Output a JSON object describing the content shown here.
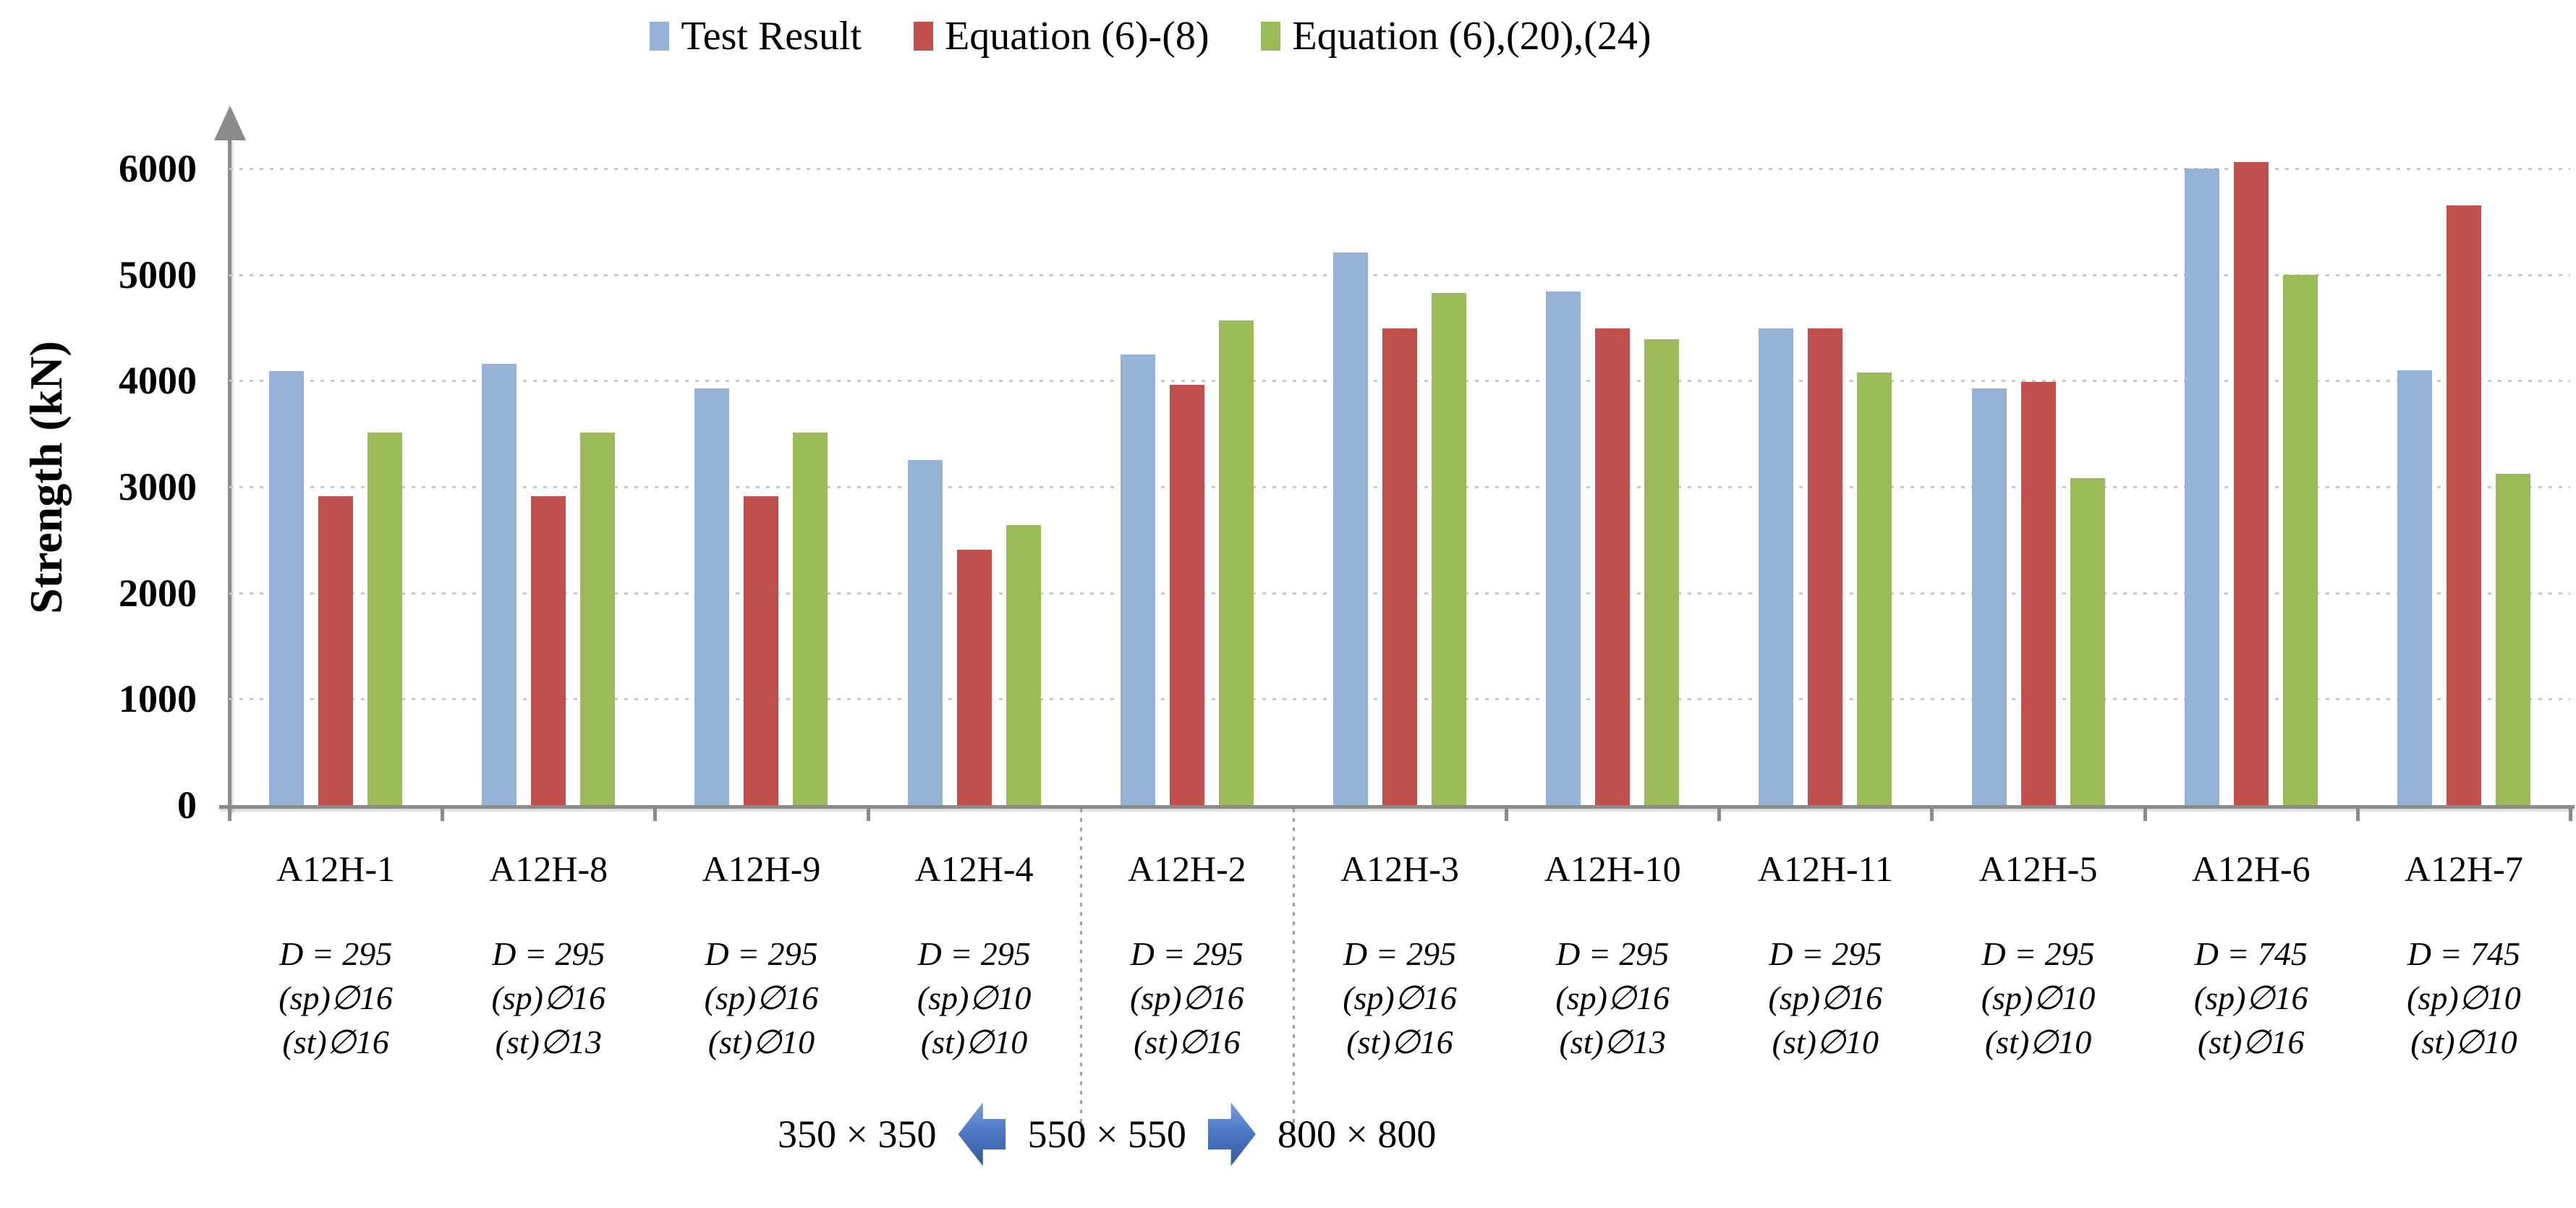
{
  "figure": {
    "legend": [
      {
        "label": "Test Result",
        "color": "#95B3D7"
      },
      {
        "label": "Equation (6)-(8)",
        "color": "#C0504D"
      },
      {
        "label": "Equation (6),(20),(24)",
        "color": "#9BBB59"
      }
    ],
    "footer": {
      "left_label": "350 × 350",
      "mid_label": "550 × 550",
      "right_label": "800 × 800",
      "arrow_color": "#4472C4"
    }
  },
  "chart_data": {
    "type": "bar",
    "title": "",
    "xlabel": "",
    "ylabel": "Strength (kN)",
    "ylim": [
      0,
      6000
    ],
    "yticks": [
      0,
      1000,
      2000,
      3000,
      4000,
      5000,
      6000
    ],
    "grid": "horizontal dashed gridlines every 1000 kN",
    "legend_position": "top-center",
    "categories": [
      "A12H-1",
      "A12H-8",
      "A12H-9",
      "A12H-4",
      "A12H-2",
      "A12H-3",
      "A12H-10",
      "A12H-11",
      "A12H-5",
      "A12H-6",
      "A12H-7"
    ],
    "category_sublabels": [
      [
        "D = 295",
        "(sp)∅16",
        "(st)∅16"
      ],
      [
        "D = 295",
        "(sp)∅16",
        "(st)∅13"
      ],
      [
        "D = 295",
        "(sp)∅16",
        "(st)∅10"
      ],
      [
        "D = 295",
        "(sp)∅10",
        "(st)∅10"
      ],
      [
        "D = 295",
        "(sp)∅16",
        "(st)∅16"
      ],
      [
        "D = 295",
        "(sp)∅16",
        "(st)∅16"
      ],
      [
        "D = 295",
        "(sp)∅16",
        "(st)∅13"
      ],
      [
        "D = 295",
        "(sp)∅16",
        "(st)∅10"
      ],
      [
        "D = 295",
        "(sp)∅10",
        "(st)∅10"
      ],
      [
        "D = 745",
        "(sp)∅16",
        "(st)∅16"
      ],
      [
        "D = 745",
        "(sp)∅10",
        "(st)∅10"
      ]
    ],
    "series": [
      {
        "name": "Test Result",
        "color": "#95B3D7",
        "values": [
          4090,
          4160,
          3930,
          3250,
          4250,
          5210,
          4840,
          4490,
          3930,
          6000,
          4100
        ]
      },
      {
        "name": "Equation (6)-(8)",
        "color": "#C0504D",
        "values": [
          2910,
          2910,
          2910,
          2410,
          3960,
          4490,
          4490,
          4490,
          3990,
          6060,
          5650
        ]
      },
      {
        "name": "Equation (6),(20),(24)",
        "color": "#9BBB59",
        "values": [
          3510,
          3510,
          3510,
          2640,
          4570,
          4830,
          4390,
          4080,
          3080,
          5000,
          3120
        ]
      }
    ],
    "region_separators_after_category": [
      "A12H-4",
      "A12H-2"
    ],
    "size_regions": [
      {
        "label": "350 × 350",
        "categories": [
          "A12H-1",
          "A12H-8",
          "A12H-9",
          "A12H-4"
        ]
      },
      {
        "label": "550 × 550",
        "categories": [
          "A12H-2"
        ]
      },
      {
        "label": "800 × 800",
        "categories": [
          "A12H-3",
          "A12H-10",
          "A12H-11",
          "A12H-5",
          "A12H-6",
          "A12H-7"
        ]
      }
    ]
  }
}
